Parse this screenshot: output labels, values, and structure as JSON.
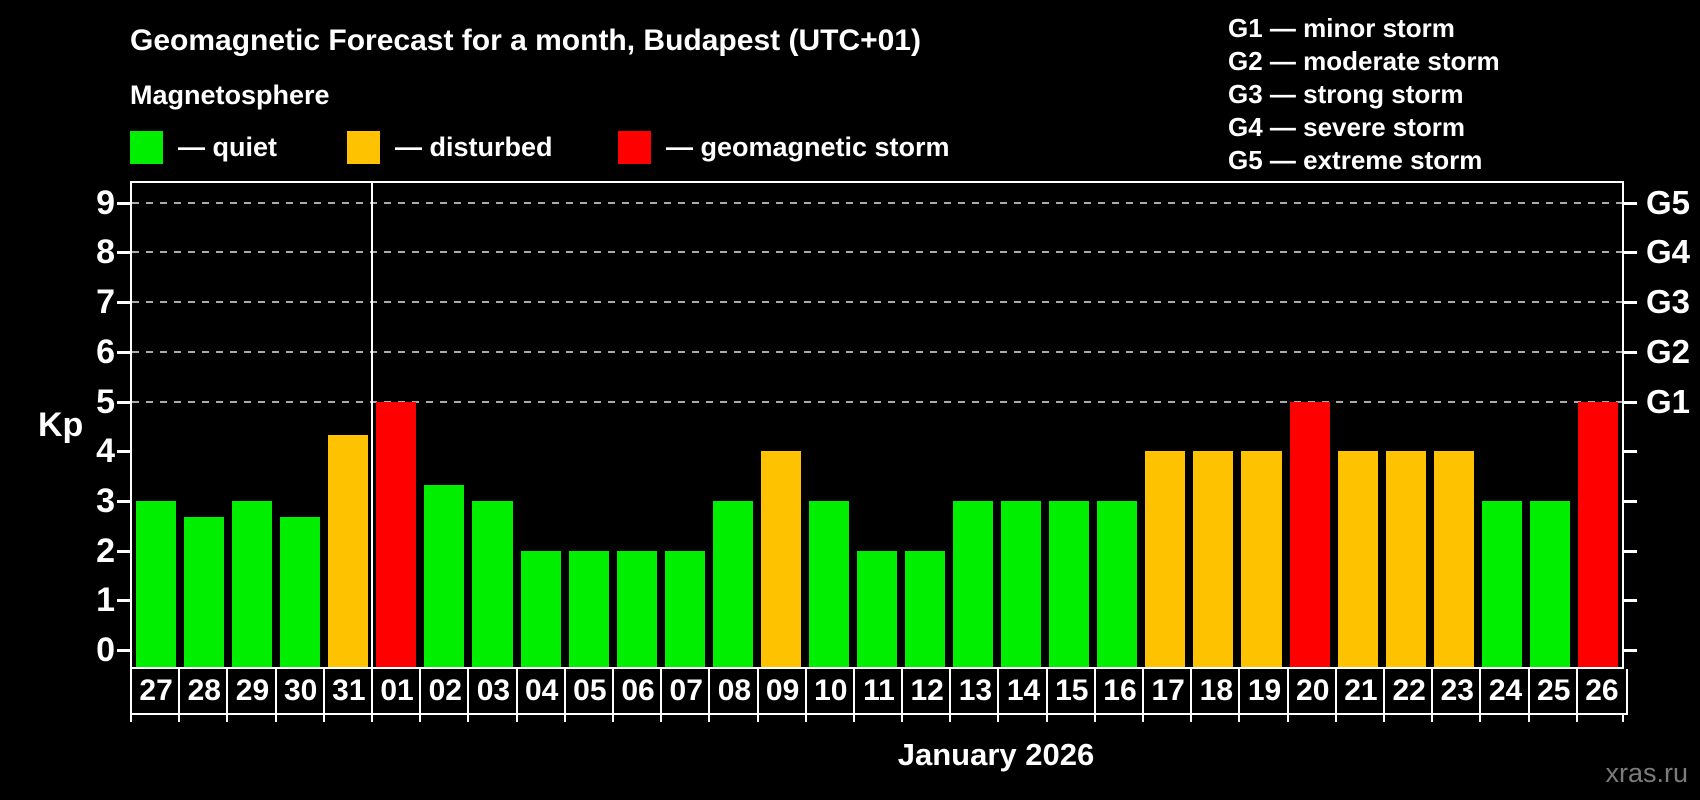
{
  "title": "Geomagnetic Forecast for a month, Budapest (UTC+01)",
  "subtitle": "Magnetosphere",
  "legend": {
    "items": [
      {
        "name": "quiet",
        "label": "— quiet",
        "color": "#00ee00"
      },
      {
        "name": "disturbed",
        "label": "— disturbed",
        "color": "#ffc200"
      },
      {
        "name": "storm",
        "label": "— geomagnetic storm",
        "color": "#ff0000"
      }
    ]
  },
  "g_legend": {
    "items": [
      "G1 — minor storm",
      "G2 — moderate storm",
      "G3 — strong storm",
      "G4 — severe storm",
      "G5 — extreme storm"
    ]
  },
  "y_axis": {
    "label": "Kp",
    "ticks": [
      0,
      1,
      2,
      3,
      4,
      5,
      6,
      7,
      8,
      9
    ]
  },
  "right_axis": {
    "labels": [
      {
        "kp": 5,
        "label": "G1"
      },
      {
        "kp": 6,
        "label": "G2"
      },
      {
        "kp": 7,
        "label": "G3"
      },
      {
        "kp": 8,
        "label": "G4"
      },
      {
        "kp": 9,
        "label": "G5"
      }
    ]
  },
  "x_axis": {
    "label": "January 2026"
  },
  "watermark": "xras.ru",
  "status_colors": {
    "quiet": "#00ee00",
    "disturbed": "#ffc200",
    "storm": "#ff0000"
  },
  "chart_data": {
    "type": "bar",
    "title": "Geomagnetic Forecast for a month, Budapest (UTC+01)",
    "xlabel": "January 2026",
    "ylabel": "Kp",
    "ylim": [
      0,
      9
    ],
    "grid": "dashed horizontal at Kp 5..9 (G1..G5)",
    "legend_position": "top-left colors, top-right G scale",
    "gridlines_kp": [
      5,
      6,
      7,
      8,
      9
    ],
    "month_separator_after_index": 4,
    "categories": [
      "27",
      "28",
      "29",
      "30",
      "31",
      "01",
      "02",
      "03",
      "04",
      "05",
      "06",
      "07",
      "08",
      "09",
      "10",
      "11",
      "12",
      "13",
      "14",
      "15",
      "16",
      "17",
      "18",
      "19",
      "20",
      "21",
      "22",
      "23",
      "24",
      "25",
      "26"
    ],
    "values": [
      3,
      2.67,
      3,
      2.67,
      4.33,
      5,
      3.33,
      3,
      2,
      2,
      2,
      2,
      3,
      4,
      3,
      2,
      2,
      3,
      3,
      3,
      3,
      4,
      4,
      4,
      5,
      4,
      4,
      4,
      3,
      3,
      5
    ],
    "statuses": [
      "quiet",
      "quiet",
      "quiet",
      "quiet",
      "disturbed",
      "storm",
      "quiet",
      "quiet",
      "quiet",
      "quiet",
      "quiet",
      "quiet",
      "quiet",
      "disturbed",
      "quiet",
      "quiet",
      "quiet",
      "quiet",
      "quiet",
      "quiet",
      "quiet",
      "disturbed",
      "disturbed",
      "disturbed",
      "storm",
      "disturbed",
      "disturbed",
      "disturbed",
      "quiet",
      "quiet",
      "storm"
    ]
  }
}
